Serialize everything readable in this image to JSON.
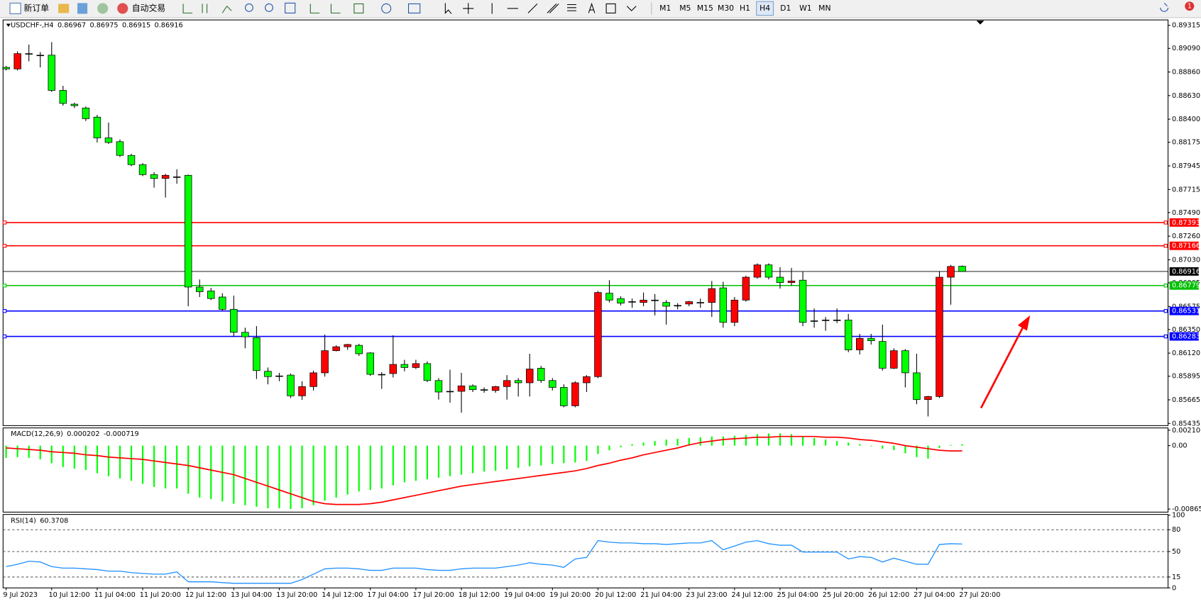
{
  "toolbar": {
    "new_order": "新订单",
    "auto_trading": "自动交易",
    "timeframes": [
      "M1",
      "M5",
      "M15",
      "M30",
      "H1",
      "H4",
      "D1",
      "W1",
      "MN"
    ],
    "active_timeframe": "H4",
    "notification": "1"
  },
  "chart_data": [
    {
      "type": "candlestick",
      "title": "USDCHF-,H4",
      "up_color": "#ff0000",
      "down_color": "#00ff00",
      "categories": [
        "9 Jul 2023",
        null,
        null,
        null,
        "10 Jul 12:00",
        null,
        null,
        null,
        "11 Jul 04:00",
        null,
        null,
        null,
        "11 Jul 20:00",
        null,
        null,
        null,
        "12 Jul 12:00",
        null,
        null,
        null,
        "13 Jul 04:00",
        null,
        null,
        null,
        "13 Jul 20:00",
        null,
        null,
        null,
        "14 Jul 12:00",
        null,
        null,
        null,
        "17 Jul 04:00",
        null,
        null,
        null,
        "17 Jul 20:00",
        null,
        null,
        null,
        "18 Jul 12:00",
        null,
        null,
        null,
        "19 Jul 04:00",
        null,
        null,
        null,
        "19 Jul 20:00",
        null,
        null,
        null,
        "20 Jul 12:00",
        null,
        null,
        null,
        "21 Jul 04:00",
        null,
        null,
        null,
        "23 Jul 23:00",
        null,
        null,
        null,
        "24 Jul 12:00",
        null,
        null,
        null,
        "25 Jul 04:00",
        null,
        null,
        null,
        "25 Jul 20:00",
        null,
        null,
        null,
        "26 Jul 12:00",
        null,
        null,
        null,
        "27 Jul 04:00",
        null,
        null,
        null,
        "27 Jul 20:00"
      ],
      "open": [
        0.88905,
        0.8889,
        0.89039,
        0.89024,
        0.89024,
        0.88681,
        0.88546,
        0.88509,
        0.8842,
        0.88218,
        0.88181,
        0.88047,
        0.87957,
        0.8786,
        0.87823,
        0.87838,
        0.87853,
        0.86764,
        0.86726,
        0.86667,
        0.86547,
        0.86323,
        0.86271,
        0.85943,
        0.85898,
        0.85906,
        0.85704,
        0.85794,
        0.85928,
        0.86144,
        0.86182,
        0.86196,
        0.86122,
        0.85913,
        0.85921,
        0.8601,
        0.8598,
        0.86018,
        0.85853,
        0.85748,
        0.85748,
        0.85801,
        0.85764,
        0.85756,
        0.85794,
        0.85853,
        0.85831,
        0.85973,
        0.85853,
        0.85786,
        0.85607,
        0.85831,
        0.85891,
        0.86704,
        0.86652,
        0.86622,
        0.86614,
        0.86637,
        0.86614,
        0.86585,
        0.86599,
        0.86614,
        0.86614,
        0.86756,
        0.8642,
        0.86637,
        0.8686,
        0.8698,
        0.8686,
        0.86808,
        0.86831,
        0.86435,
        0.86443,
        0.86443,
        0.86443,
        0.86152,
        0.86264,
        0.86234,
        0.85973,
        0.86144,
        0.85928,
        0.85667,
        0.85697,
        0.8686,
        0.86967
      ],
      "high": [
        0.88919,
        0.89061,
        0.89128,
        0.89054,
        0.89151,
        0.88725,
        0.88561,
        0.88524,
        0.88442,
        0.88367,
        0.88203,
        0.88062,
        0.87972,
        0.87883,
        0.87868,
        0.87912,
        0.8786,
        0.86838,
        0.86756,
        0.86704,
        0.86681,
        0.86368,
        0.86383,
        0.8598,
        0.85928,
        0.85921,
        0.85846,
        0.8595,
        0.86301,
        0.86196,
        0.86211,
        0.86211,
        0.86129,
        0.85935,
        0.86294,
        0.86055,
        0.86055,
        0.8604,
        0.85876,
        0.85958,
        0.85928,
        0.85816,
        0.85786,
        0.85801,
        0.85906,
        0.85876,
        0.86114,
        0.85995,
        0.85876,
        0.85816,
        0.85846,
        0.85906,
        0.86726,
        0.86831,
        0.86674,
        0.86652,
        0.86711,
        0.86696,
        0.86637,
        0.86607,
        0.86629,
        0.86652,
        0.86823,
        0.86816,
        0.86667,
        0.86875,
        0.86995,
        0.86995,
        0.86958,
        0.86951,
        0.86913,
        0.86555,
        0.86472,
        0.86555,
        0.86502,
        0.86308,
        0.86308,
        0.86398,
        0.86167,
        0.86159,
        0.86114,
        0.85704,
        0.8692,
        0.8698,
        0.86975
      ],
      "low": [
        0.88875,
        0.88875,
        0.88964,
        0.88905,
        0.88666,
        0.88532,
        0.88509,
        0.88382,
        0.88173,
        0.88159,
        0.88032,
        0.87942,
        0.87845,
        0.87733,
        0.87636,
        0.87771,
        0.86577,
        0.86667,
        0.86637,
        0.86532,
        0.86279,
        0.86167,
        0.85868,
        0.85816,
        0.85846,
        0.85682,
        0.85665,
        0.85756,
        0.85891,
        0.86137,
        0.86152,
        0.86092,
        0.85898,
        0.85771,
        0.85883,
        0.85943,
        0.85965,
        0.85838,
        0.85667,
        0.85637,
        0.8554,
        0.85741,
        0.85734,
        0.85734,
        0.85667,
        0.85697,
        0.85697,
        0.85831,
        0.85756,
        0.85592,
        0.85592,
        0.85741,
        0.85876,
        0.86614,
        0.86585,
        0.86562,
        0.86577,
        0.86488,
        0.86398,
        0.86547,
        0.86577,
        0.86562,
        0.86473,
        0.86368,
        0.86383,
        0.86622,
        0.86845,
        0.86838,
        0.86749,
        0.86778,
        0.86383,
        0.86368,
        0.86338,
        0.86413,
        0.86129,
        0.86107,
        0.86204,
        0.8595,
        0.85965,
        0.85786,
        0.85622,
        0.85503,
        0.85682,
        0.86592,
        0.86915
      ],
      "close": [
        0.8889,
        0.89039,
        0.89039,
        0.89024,
        0.88681,
        0.88554,
        0.88532,
        0.88405,
        0.88218,
        0.88173,
        0.88047,
        0.87957,
        0.8786,
        0.87823,
        0.87853,
        0.87838,
        0.86764,
        0.86719,
        0.86652,
        0.86547,
        0.86323,
        0.86279,
        0.8595,
        0.85891,
        0.85898,
        0.85704,
        0.85794,
        0.85928,
        0.86144,
        0.86182,
        0.86204,
        0.86114,
        0.85913,
        0.85913,
        0.8601,
        0.8598,
        0.86018,
        0.85853,
        0.85741,
        0.85748,
        0.85801,
        0.85764,
        0.85764,
        0.85794,
        0.85853,
        0.85831,
        0.85965,
        0.85853,
        0.85786,
        0.85607,
        0.85831,
        0.85891,
        0.86711,
        0.86637,
        0.86607,
        0.86622,
        0.86637,
        0.86637,
        0.86577,
        0.86585,
        0.86622,
        0.86614,
        0.86749,
        0.8642,
        0.86637,
        0.8686,
        0.8698,
        0.8686,
        0.86808,
        0.86823,
        0.8642,
        0.86435,
        0.86443,
        0.86443,
        0.86152,
        0.86264,
        0.86241,
        0.85973,
        0.86144,
        0.85928,
        0.85667,
        0.85697,
        0.8686,
        0.86965,
        0.86916
      ],
      "ylim": [
        0.85421,
        0.8936
      ],
      "yticks": [
        0.89315,
        {
          "value": 0.8909,
          "label": "0.89090"
        },
        {
          "value": 0.8886,
          "label": "0.88860"
        },
        {
          "value": 0.8863,
          "label": "0.88630"
        },
        {
          "value": 0.884,
          "label": "0.88400"
        },
        0.88175,
        0.87945,
        0.87715,
        {
          "value": 0.8749,
          "label": "0.87490"
        },
        {
          "value": 0.8726,
          "label": "0.87260"
        },
        {
          "value": 0.8703,
          "label": "0.87030"
        },
        0.86805,
        0.86575,
        {
          "value": 0.8635,
          "label": "0.86350"
        },
        {
          "value": 0.8612,
          "label": "0.86120"
        },
        0.85895,
        0.85665,
        0.85435
      ],
      "hlines": [
        {
          "value": 0.87393,
          "color": "#ff0000"
        },
        {
          "value": 0.87166,
          "color": "#ff0000"
        },
        {
          "value": 0.86916,
          "color": "#000000"
        },
        {
          "value": 0.86779,
          "color": "#00c000"
        },
        {
          "value": 0.86531,
          "color": "#0000ff"
        },
        {
          "value": 0.86283,
          "color": "#0000ff"
        }
      ]
    },
    {
      "type": "macd",
      "title": "MACD(12,26,9)",
      "histogram": {
        "color": "#00ff00",
        "values": [
          -0.001669,
          -0.001565,
          -0.001669,
          -0.001877,
          -0.002399,
          -0.00292,
          -0.003129,
          -0.003338,
          -0.003755,
          -0.004172,
          -0.004485,
          -0.004798,
          -0.005215,
          -0.005632,
          -0.005841,
          -0.005841,
          -0.006571,
          -0.007092,
          -0.007301,
          -0.007614,
          -0.007927,
          -0.008135,
          -0.008344,
          -0.008553,
          -0.008553,
          -0.008658,
          -0.008553,
          -0.008135,
          -0.00751,
          -0.007092,
          -0.006675,
          -0.006258,
          -0.006049,
          -0.005841,
          -0.005424,
          -0.005006,
          -0.004798,
          -0.004589,
          -0.004381,
          -0.004172,
          -0.003963,
          -0.003755,
          -0.003546,
          -0.003442,
          -0.003233,
          -0.003025,
          -0.002816,
          -0.002712,
          -0.002503,
          -0.002399,
          -0.002295,
          -0.002086,
          -0.001147,
          -0.000626,
          -0.000209,
          0.000209,
          0.000417,
          0.000626,
          0.000834,
          0.000939,
          0.001043,
          0.001147,
          0.001252,
          0.001252,
          0.001356,
          0.00146,
          0.001565,
          0.001669,
          0.001669,
          0.001565,
          0.001252,
          0.001043,
          0.000834,
          0.000626,
          0.000417,
          0.000209,
          0,
          -0.000417,
          -0.000626,
          -0.001043,
          -0.001565,
          -0.001773,
          -0.000313,
          0.000104,
          0.000202
        ]
      },
      "signal": {
        "color": "#ff0000",
        "values": [
          -0.000313,
          -0.000417,
          -0.000522,
          -0.000626,
          -0.000834,
          -0.000939,
          -0.001043,
          -0.001252,
          -0.001356,
          -0.001565,
          -0.001669,
          -0.001773,
          -0.001877,
          -0.002086,
          -0.002295,
          -0.002503,
          -0.002712,
          -0.003025,
          -0.003338,
          -0.00365,
          -0.003963,
          -0.004485,
          -0.005006,
          -0.005528,
          -0.006049,
          -0.006571,
          -0.007092,
          -0.007614,
          -0.007927,
          -0.008031,
          -0.008031,
          -0.008031,
          -0.007927,
          -0.007718,
          -0.007405,
          -0.007092,
          -0.006779,
          -0.006467,
          -0.006154,
          -0.005841,
          -0.005528,
          -0.005319,
          -0.005111,
          -0.004902,
          -0.004694,
          -0.004485,
          -0.004276,
          -0.004068,
          -0.003859,
          -0.00365,
          -0.003442,
          -0.003129,
          -0.002712,
          -0.002399,
          -0.001982,
          -0.001669,
          -0.001252,
          -0.000939,
          -0.000626,
          -0.000313,
          0.000104,
          0.000417,
          0.000626,
          0.000834,
          0.000939,
          0.001043,
          0.001147,
          0.001147,
          0.001252,
          0.001252,
          0.001252,
          0.001252,
          0.001147,
          0.001147,
          0.001043,
          0.000834,
          0.00073,
          0.000522,
          0.000313,
          0,
          -0.000209,
          -0.000417,
          -0.000626,
          -0.00073,
          -0.000719
        ]
      },
      "ylim": [
        -0.008658,
        0.002106
      ],
      "yticks": [
        0.002106,
        {
          "value": 0,
          "label": "0.00"
        },
        -0.008658
      ]
    },
    {
      "type": "line",
      "title": "RSI(14)",
      "color": "#1e90ff",
      "values": [
        29.3,
        32.5,
        36.7,
        35.6,
        29.3,
        27.2,
        27.2,
        26.2,
        25.2,
        23.1,
        23.1,
        21.0,
        19.9,
        18.9,
        18.9,
        22.0,
        8.4,
        8.4,
        8.4,
        7.3,
        6.3,
        6.3,
        6.3,
        6.3,
        6.3,
        6.3,
        11.5,
        18.9,
        26.2,
        27.2,
        27.2,
        26.2,
        24.1,
        24.1,
        27.2,
        27.2,
        27.2,
        25.2,
        24.1,
        24.1,
        26.2,
        27.2,
        27.2,
        27.2,
        29.3,
        31.4,
        34.6,
        32.5,
        31.4,
        28.3,
        39.8,
        41.9,
        65.0,
        62.9,
        61.8,
        61.8,
        60.8,
        60.8,
        59.7,
        60.8,
        61.8,
        61.8,
        65.0,
        52.4,
        57.6,
        62.9,
        65.0,
        60.8,
        58.7,
        58.7,
        49.3,
        49.3,
        49.3,
        49.3,
        39.8,
        43.0,
        41.9,
        35.6,
        40.9,
        36.7,
        32.5,
        32.5,
        59.7,
        60.8,
        60.3708
      ],
      "ylim": [
        0,
        100
      ],
      "yticks": [
        100,
        80,
        50,
        15,
        0
      ]
    }
  ]
}
